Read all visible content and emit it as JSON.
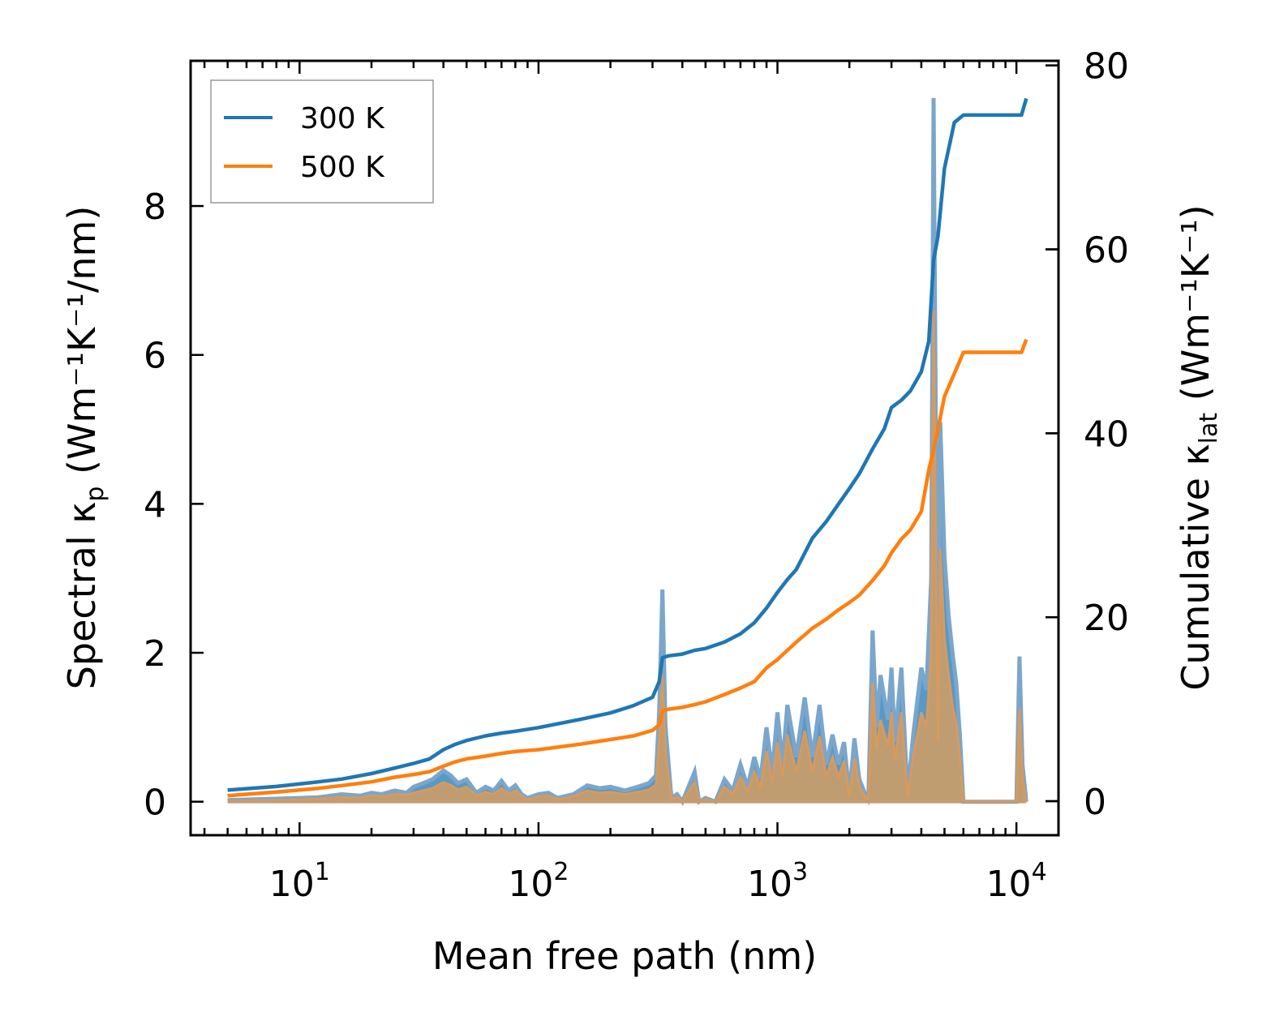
{
  "chart_data": {
    "type": "line",
    "title": "",
    "xlabel": "Mean free path (nm)",
    "ylabel_left": {
      "base": "Spectral κ",
      "sub": "p",
      "unit": "(Wm⁻¹K⁻¹/nm)"
    },
    "ylabel_right": {
      "base": "Cumulative κ",
      "sub": "lat",
      "unit": "(Wm⁻¹K⁻¹)"
    },
    "x_scale": "log",
    "xlim": [
      3.5,
      15000
    ],
    "ylim_left": [
      -0.45,
      9.95
    ],
    "ylim_right": [
      -3.7,
      80.5
    ],
    "x_ticks": [
      {
        "value": 10,
        "label": "10",
        "exp": "1"
      },
      {
        "value": 100,
        "label": "10",
        "exp": "2"
      },
      {
        "value": 1000,
        "label": "10",
        "exp": "3"
      },
      {
        "value": 10000,
        "label": "10",
        "exp": "4"
      }
    ],
    "y_ticks_left": [
      "0",
      "2",
      "4",
      "6",
      "8"
    ],
    "y_ticks_right": [
      "0",
      "20",
      "40",
      "60",
      "80"
    ],
    "legend": {
      "position": "top-left",
      "entries": [
        "300 K",
        "500 K"
      ]
    },
    "colors": {
      "300 K": "#1f77b4",
      "500 K": "#ff7f0e",
      "fill": "#c69c6d"
    },
    "cumulative_series": [
      {
        "name": "300 K",
        "axis": "right",
        "x": [
          5,
          8,
          12,
          15,
          20,
          25,
          30,
          35,
          40,
          45,
          50,
          60,
          70,
          80,
          100,
          150,
          200,
          250,
          300,
          320,
          330,
          350,
          400,
          450,
          500,
          600,
          700,
          800,
          900,
          1000,
          1100,
          1200,
          1400,
          1600,
          1800,
          2000,
          2200,
          2500,
          2800,
          3000,
          3300,
          3600,
          4000,
          4300,
          4500,
          4700,
          5000,
          5500,
          6000,
          10500,
          11000
        ],
        "y": [
          1.2,
          1.6,
          2.1,
          2.4,
          3.0,
          3.6,
          4.1,
          4.6,
          5.6,
          6.2,
          6.6,
          7.1,
          7.4,
          7.6,
          8.0,
          8.9,
          9.6,
          10.4,
          11.3,
          13.0,
          15.6,
          15.8,
          16.0,
          16.4,
          16.6,
          17.3,
          18.2,
          19.4,
          21.0,
          22.7,
          24.1,
          25.2,
          28.6,
          30.4,
          32.3,
          34.0,
          35.6,
          38.3,
          40.5,
          42.8,
          43.6,
          44.6,
          46.7,
          50.0,
          58.8,
          61.5,
          68.8,
          73.8,
          74.6,
          74.6,
          76.4
        ]
      },
      {
        "name": "500 K",
        "axis": "right",
        "x": [
          5,
          8,
          12,
          15,
          20,
          25,
          30,
          35,
          40,
          45,
          50,
          60,
          70,
          80,
          100,
          150,
          200,
          250,
          300,
          320,
          330,
          350,
          400,
          450,
          500,
          600,
          700,
          800,
          900,
          1000,
          1100,
          1200,
          1400,
          1600,
          1800,
          2000,
          2200,
          2500,
          2800,
          3000,
          3300,
          3600,
          4000,
          4300,
          4500,
          4700,
          5000,
          5500,
          6000,
          10500,
          11000
        ],
        "y": [
          0.6,
          1.0,
          1.4,
          1.7,
          2.1,
          2.6,
          2.9,
          3.2,
          3.8,
          4.3,
          4.6,
          4.9,
          5.2,
          5.4,
          5.6,
          6.2,
          6.7,
          7.1,
          7.7,
          8.3,
          9.8,
          10.0,
          10.2,
          10.5,
          10.8,
          11.6,
          12.3,
          13.0,
          14.5,
          15.4,
          16.4,
          17.3,
          18.8,
          19.8,
          20.8,
          21.6,
          22.4,
          24.0,
          25.6,
          27.0,
          28.5,
          29.5,
          31.5,
          36.0,
          38.2,
          40.5,
          44.0,
          46.5,
          48.8,
          48.8,
          50.2
        ]
      }
    ],
    "spectral_series": [
      {
        "name": "300 K",
        "axis": "left",
        "x": [
          5,
          8,
          10,
          12,
          15,
          18,
          20,
          22,
          25,
          28,
          30,
          33,
          36,
          40,
          43,
          46,
          50,
          55,
          60,
          65,
          70,
          75,
          80,
          85,
          90,
          100,
          110,
          120,
          140,
          160,
          180,
          200,
          230,
          260,
          290,
          310,
          320,
          330,
          340,
          360,
          380,
          400,
          450,
          470,
          500,
          550,
          600,
          650,
          700,
          750,
          800,
          850,
          900,
          950,
          1000,
          1050,
          1100,
          1200,
          1300,
          1400,
          1500,
          1600,
          1700,
          1800,
          1900,
          2000,
          2100,
          2200,
          2400,
          2500,
          2600,
          2700,
          2900,
          3000,
          3100,
          3300,
          3500,
          3700,
          4000,
          4200,
          4400,
          4500,
          4600,
          4700,
          4800,
          5000,
          5200,
          5400,
          5600,
          5800,
          6000,
          6300,
          10000,
          10300,
          10600,
          11000
        ],
        "y": [
          0.02,
          0.04,
          0.05,
          0.06,
          0.1,
          0.08,
          0.12,
          0.1,
          0.15,
          0.12,
          0.2,
          0.25,
          0.3,
          0.42,
          0.35,
          0.25,
          0.3,
          0.12,
          0.2,
          0.15,
          0.28,
          0.15,
          0.22,
          0.1,
          0.05,
          0.1,
          0.12,
          0.05,
          0.1,
          0.22,
          0.18,
          0.2,
          0.15,
          0.2,
          0.25,
          0.35,
          1.2,
          2.85,
          1.0,
          0.05,
          0.1,
          0.0,
          0.4,
          0.0,
          0.05,
          0.0,
          0.3,
          0.15,
          0.5,
          0.2,
          0.6,
          0.3,
          1.0,
          0.4,
          1.2,
          0.5,
          1.3,
          0.6,
          1.4,
          0.6,
          1.3,
          0.5,
          0.9,
          0.5,
          0.8,
          0.1,
          0.85,
          0.3,
          0.0,
          2.3,
          1.0,
          1.7,
          1.1,
          1.8,
          0.8,
          1.8,
          0.1,
          0.9,
          1.8,
          1.5,
          3.0,
          9.45,
          5.0,
          1.2,
          5.1,
          3.3,
          2.5,
          2.0,
          1.6,
          0.9,
          0.0,
          0.0,
          0.0,
          1.95,
          0.5,
          0.0
        ],
        "y_500K": [
          0.01,
          0.02,
          0.03,
          0.04,
          0.06,
          0.05,
          0.08,
          0.07,
          0.1,
          0.09,
          0.12,
          0.15,
          0.18,
          0.26,
          0.22,
          0.16,
          0.2,
          0.08,
          0.13,
          0.1,
          0.18,
          0.1,
          0.15,
          0.07,
          0.03,
          0.07,
          0.08,
          0.03,
          0.07,
          0.15,
          0.12,
          0.13,
          0.1,
          0.13,
          0.16,
          0.23,
          0.8,
          1.7,
          0.65,
          0.03,
          0.07,
          0.0,
          0.26,
          0.0,
          0.03,
          0.0,
          0.2,
          0.1,
          0.33,
          0.13,
          0.4,
          0.2,
          0.68,
          0.26,
          0.8,
          0.33,
          0.9,
          0.4,
          0.95,
          0.4,
          0.88,
          0.33,
          0.6,
          0.33,
          0.55,
          0.07,
          0.58,
          0.2,
          0.0,
          1.6,
          0.7,
          1.1,
          0.75,
          1.2,
          0.55,
          1.2,
          0.07,
          0.6,
          1.2,
          1.0,
          2.0,
          6.6,
          3.3,
          0.8,
          3.4,
          2.2,
          1.7,
          1.3,
          1.05,
          0.6,
          0.0,
          0.0,
          0.0,
          1.25,
          0.33,
          0.0
        ]
      }
    ]
  }
}
